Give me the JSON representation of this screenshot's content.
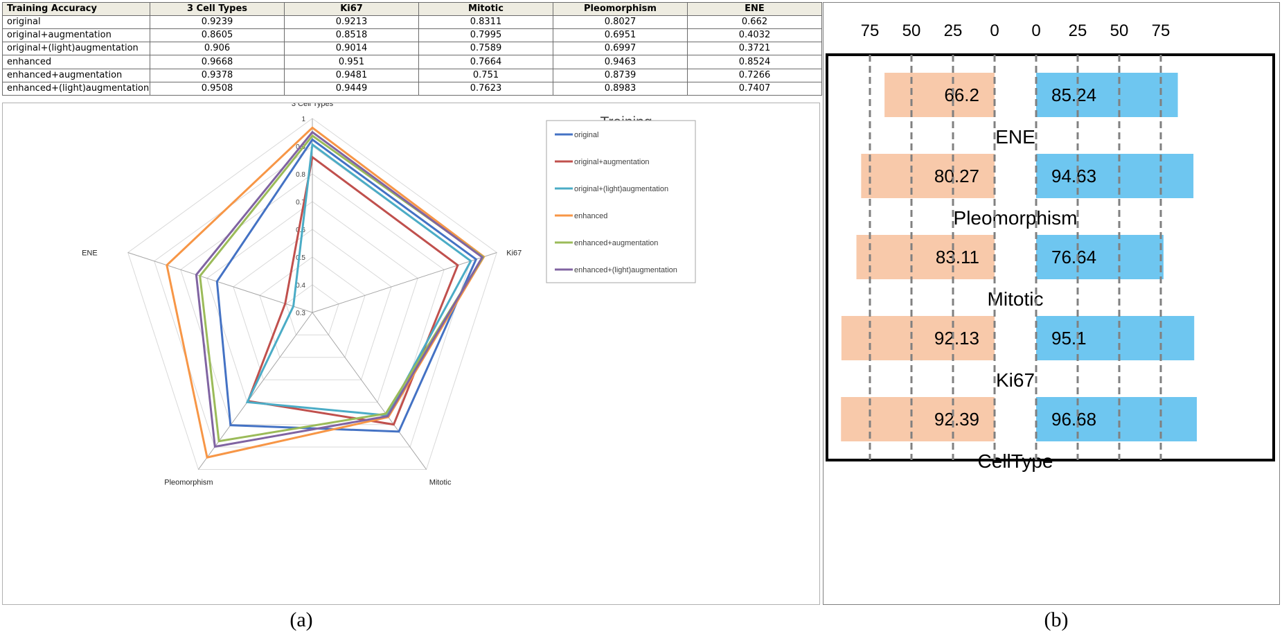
{
  "panel_a": {
    "table": {
      "header": [
        "Training Accuracy",
        "3 Cell Types",
        "Ki67",
        "Mitotic",
        "Pleomorphism",
        "ENE"
      ],
      "rows": [
        [
          "original",
          "0.9239",
          "0.9213",
          "0.8311",
          "0.8027",
          "0.662"
        ],
        [
          "original+augmentation",
          "0.8605",
          "0.8518",
          "0.7995",
          "0.6951",
          "0.4032"
        ],
        [
          "original+(light)augmentation",
          "0.906",
          "0.9014",
          "0.7589",
          "0.6997",
          "0.3721"
        ],
        [
          "enhanced",
          "0.9668",
          "0.951",
          "0.7664",
          "0.9463",
          "0.8524"
        ],
        [
          "enhanced+augmentation",
          "0.9378",
          "0.9481",
          "0.751",
          "0.8739",
          "0.7266"
        ],
        [
          "enhanced+(light)augmentation",
          "0.9508",
          "0.9449",
          "0.7623",
          "0.8983",
          "0.7407"
        ]
      ]
    },
    "caption": "(a)"
  },
  "panel_b": {
    "caption": "(b)"
  },
  "chart_data": [
    {
      "type": "radar",
      "title": "Training",
      "axes": [
        "3 Cell Types",
        "Ki67",
        "Mitotic",
        "Pleomorphism",
        "ENE"
      ],
      "rlim": [
        0.3,
        1
      ],
      "ticks": [
        "0.3",
        "0.4",
        "0.5",
        "0.6",
        "0.7",
        "0.8",
        "0.9",
        "1"
      ],
      "legend_position": "right",
      "series": [
        {
          "name": "original",
          "color": "#4472c4",
          "values": [
            0.9239,
            0.9213,
            0.8311,
            0.8027,
            0.662
          ]
        },
        {
          "name": "original+augmentation",
          "color": "#c0504d",
          "values": [
            0.8605,
            0.8518,
            0.7995,
            0.6951,
            0.4032
          ]
        },
        {
          "name": "original+(light)augmentation",
          "color": "#4bacc6",
          "values": [
            0.906,
            0.9014,
            0.7589,
            0.6997,
            0.3721
          ]
        },
        {
          "name": "enhanced",
          "color": "#f79646",
          "values": [
            0.9668,
            0.951,
            0.7664,
            0.9463,
            0.8524
          ]
        },
        {
          "name": "enhanced+augmentation",
          "color": "#9bbb59",
          "values": [
            0.9378,
            0.9481,
            0.751,
            0.8739,
            0.7266
          ]
        },
        {
          "name": "enhanced+(light)augmentation",
          "color": "#8064a2",
          "values": [
            0.9508,
            0.9449,
            0.7623,
            0.8983,
            0.7407
          ]
        }
      ]
    },
    {
      "type": "bar",
      "orientation": "horizontal-diverging",
      "categories": [
        "ENE",
        "Pleomorphism",
        "Mitotic",
        "Ki67",
        "CellType"
      ],
      "axis_ticks_left": [
        "75",
        "50",
        "25",
        "0"
      ],
      "axis_ticks_right": [
        "0",
        "25",
        "50",
        "75"
      ],
      "xlim": [
        0,
        100
      ],
      "grid": "dashed vertical",
      "series": [
        {
          "side": "left",
          "color": "#f8c9aa",
          "values": [
            66.2,
            80.27,
            83.11,
            92.13,
            92.39
          ],
          "labels": [
            "66.2",
            "80.27",
            "83.11",
            "92.13",
            "92.39"
          ]
        },
        {
          "side": "right",
          "color": "#6ec6f0",
          "values": [
            85.24,
            94.63,
            76.64,
            95.1,
            96.68
          ],
          "labels": [
            "85.24",
            "94.63",
            "76.64",
            "95.1",
            "96.68"
          ]
        }
      ]
    }
  ]
}
